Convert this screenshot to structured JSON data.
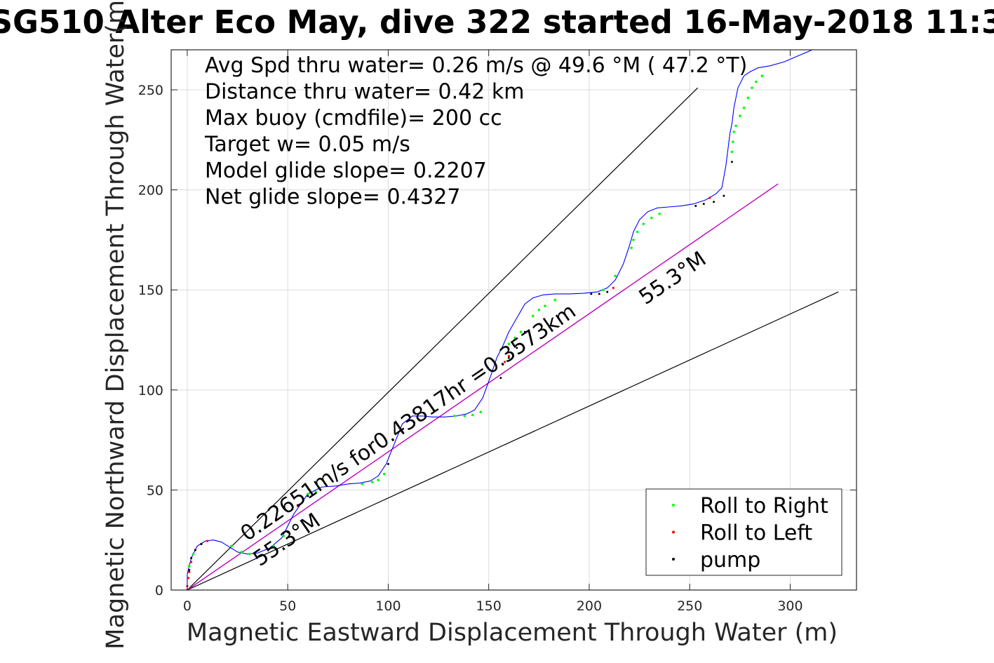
{
  "chart_data": {
    "type": "line",
    "title": "SG510 Alter Eco May, dive 322 started 16-May-2018 11:3",
    "xlabel": "Magnetic Eastward Displacement Through Water (m)",
    "ylabel": "Magnetic Northward Displacement Through Water(m)",
    "xlim": [
      -8,
      333
    ],
    "ylim": [
      0,
      270
    ],
    "xticks": [
      0,
      50,
      100,
      150,
      200,
      250,
      300
    ],
    "yticks": [
      0,
      50,
      100,
      150,
      200,
      250
    ],
    "grid": true,
    "legend_position": "bottom-right",
    "info_lines": [
      "Avg Spd thru water=  0.26 m/s @  49.6 °M ( 47.2 °T)",
      "Distance thru water=  0.42 km",
      "Max buoy (cmdfile)= 200 cc",
      "Target w= 0.05 m/s",
      "Model glide slope= 0.2207",
      "Net glide slope= 0.4327"
    ],
    "annotations": {
      "speed_text": "0.22651m/s for0.43817hr =0.3573km",
      "heading_upper": "55.3°M",
      "heading_lower": "55.3°M"
    },
    "colors": {
      "track": "#0000ff",
      "net_line": "#bf00bf",
      "guide": "#000000",
      "roll_right": "#00ff00",
      "roll_left": "#ff0000",
      "pump": "#000000"
    },
    "series": [
      {
        "name": "track",
        "x": [
          0,
          0,
          2,
          5,
          9,
          13,
          17,
          21,
          25,
          30,
          35,
          41,
          47,
          53,
          60,
          67,
          74,
          80,
          86,
          91,
          95,
          99,
          103,
          107,
          112,
          117,
          122,
          128,
          134,
          139,
          143,
          147,
          151,
          154,
          157,
          160,
          164,
          168,
          172,
          177,
          183,
          190,
          197,
          204,
          209,
          213,
          217,
          220,
          222,
          225,
          229,
          234,
          240,
          246,
          252,
          258,
          263,
          266,
          268,
          270,
          271,
          272,
          274,
          277,
          280,
          284,
          290,
          297,
          304,
          311,
          317
        ],
        "y": [
          0,
          8,
          16,
          22,
          24.5,
          25,
          24,
          21.5,
          19,
          18,
          18.5,
          21,
          26,
          38,
          48,
          51.5,
          52,
          53,
          53.5,
          54.5,
          57,
          63,
          73,
          83,
          87,
          87,
          86.5,
          86.5,
          87,
          88,
          90,
          96,
          107,
          116,
          122,
          129,
          136,
          143,
          146,
          147.5,
          148,
          148,
          148.3,
          149,
          151,
          155,
          163,
          172,
          179,
          185,
          189,
          191,
          191.5,
          192,
          193,
          195,
          198,
          201,
          212,
          228,
          233,
          241,
          251,
          257,
          259,
          261,
          262,
          264,
          267,
          270,
          272
        ]
      },
      {
        "name": "net",
        "x": [
          0,
          294
        ],
        "y": [
          0,
          203
        ]
      },
      {
        "name": "guide-upper",
        "x": [
          0,
          254
        ],
        "y": [
          0,
          251
        ]
      },
      {
        "name": "guide-lower",
        "x": [
          0,
          324
        ],
        "y": [
          0,
          149
        ]
      },
      {
        "name": "Roll to Right",
        "x": [
          1,
          3,
          22,
          27,
          31,
          43,
          48,
          60,
          64,
          87,
          92,
          95,
          98,
          133,
          138,
          142,
          146,
          160,
          163,
          166,
          172,
          175,
          178,
          183,
          207,
          213,
          221,
          222,
          224,
          227,
          231,
          235,
          271,
          271.5,
          272,
          273,
          275,
          277,
          279,
          281,
          283,
          286
        ],
        "y": [
          12,
          18,
          22,
          19,
          18,
          22,
          27,
          48,
          49,
          53,
          54,
          55,
          58,
          87,
          87,
          87.5,
          89,
          123,
          126,
          129,
          137,
          140,
          142,
          145,
          150,
          157,
          171,
          175,
          179,
          183,
          186,
          188,
          219,
          224,
          229,
          232,
          237,
          241,
          246,
          251,
          254,
          257
        ],
        "values_estimated": true
      },
      {
        "name": "Roll to Left",
        "x": [
          0,
          0,
          0.5,
          1,
          2,
          4,
          7,
          10,
          55,
          158,
          160,
          212,
          260
        ],
        "y": [
          0,
          2,
          6,
          9,
          14,
          20,
          23,
          24.5,
          42,
          114,
          117,
          151,
          196
        ],
        "values_estimated": true
      },
      {
        "name": "pump",
        "x": [
          0,
          1,
          2,
          4,
          7,
          50,
          60,
          100,
          107,
          156,
          160,
          164,
          168,
          201,
          205,
          209,
          253,
          257,
          262,
          267,
          271
        ],
        "y": [
          0,
          10,
          16,
          20,
          23,
          29,
          47,
          63,
          79,
          106,
          116,
          121,
          129,
          148,
          148,
          149,
          192,
          193,
          194,
          197,
          214
        ],
        "values_estimated": true
      }
    ]
  }
}
